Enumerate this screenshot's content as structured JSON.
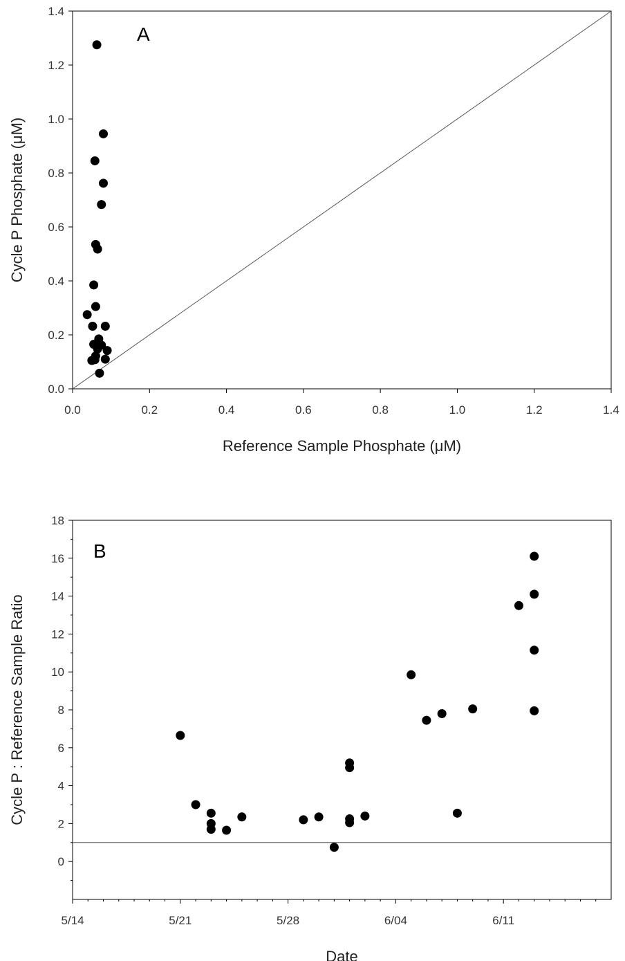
{
  "chart_data": [
    {
      "type": "scatter",
      "panel_label": "A",
      "xlabel": "Reference Sample Phosphate (μM)",
      "ylabel": "Cycle P Phosphate (μM)",
      "xlim": [
        0.0,
        1.4
      ],
      "ylim": [
        0.0,
        1.4
      ],
      "x_ticks": [
        "0.0",
        "0.2",
        "0.4",
        "0.6",
        "0.8",
        "1.0",
        "1.2",
        "1.4"
      ],
      "y_ticks": [
        "0.0",
        "0.2",
        "0.4",
        "0.6",
        "0.8",
        "1.0",
        "1.2",
        "1.4"
      ],
      "grid": false,
      "reference_line": "1:1",
      "error_bars": true,
      "points": [
        {
          "x": 0.063,
          "y": 1.275
        },
        {
          "x": 0.08,
          "y": 0.945
        },
        {
          "x": 0.058,
          "y": 0.845
        },
        {
          "x": 0.08,
          "y": 0.762
        },
        {
          "x": 0.075,
          "y": 0.683
        },
        {
          "x": 0.06,
          "y": 0.535
        },
        {
          "x": 0.065,
          "y": 0.518
        },
        {
          "x": 0.055,
          "y": 0.385
        },
        {
          "x": 0.06,
          "y": 0.305
        },
        {
          "x": 0.038,
          "y": 0.275
        },
        {
          "x": 0.052,
          "y": 0.232
        },
        {
          "x": 0.085,
          "y": 0.232
        },
        {
          "x": 0.068,
          "y": 0.185
        },
        {
          "x": 0.055,
          "y": 0.165
        },
        {
          "x": 0.075,
          "y": 0.162
        },
        {
          "x": 0.065,
          "y": 0.148
        },
        {
          "x": 0.09,
          "y": 0.142
        },
        {
          "x": 0.06,
          "y": 0.122
        },
        {
          "x": 0.05,
          "y": 0.105
        },
        {
          "x": 0.058,
          "y": 0.108
        },
        {
          "x": 0.085,
          "y": 0.11
        },
        {
          "x": 0.07,
          "y": 0.058
        }
      ]
    },
    {
      "type": "scatter",
      "panel_label": "B",
      "xlabel": "Date",
      "ylabel": "Cycle P : Reference Sample Ratio",
      "xlim": [
        "5/14",
        "6/18"
      ],
      "ylim": [
        -2,
        18
      ],
      "x_ticks": [
        "5/14",
        "5/21",
        "5/28",
        "6/04",
        "6/11"
      ],
      "y_ticks": [
        "0",
        "2",
        "4",
        "6",
        "8",
        "10",
        "12",
        "14",
        "16",
        "18"
      ],
      "grid": false,
      "reference_line": "y = 1",
      "points": [
        {
          "x": "5/21",
          "y": 6.65
        },
        {
          "x": "5/22",
          "y": 3.0
        },
        {
          "x": "5/23",
          "y": 2.55
        },
        {
          "x": "5/23",
          "y": 2.0
        },
        {
          "x": "5/23",
          "y": 1.7
        },
        {
          "x": "5/24",
          "y": 1.65
        },
        {
          "x": "5/25",
          "y": 2.35
        },
        {
          "x": "5/29",
          "y": 2.2
        },
        {
          "x": "5/30",
          "y": 2.35
        },
        {
          "x": "5/31",
          "y": 0.75
        },
        {
          "x": "6/01",
          "y": 2.25
        },
        {
          "x": "6/01",
          "y": 2.05
        },
        {
          "x": "6/01",
          "y": 5.2
        },
        {
          "x": "6/01",
          "y": 4.95
        },
        {
          "x": "6/02",
          "y": 2.4
        },
        {
          "x": "6/05",
          "y": 9.85
        },
        {
          "x": "6/06",
          "y": 7.45
        },
        {
          "x": "6/07",
          "y": 7.8
        },
        {
          "x": "6/08",
          "y": 2.55
        },
        {
          "x": "6/09",
          "y": 8.05
        },
        {
          "x": "6/12",
          "y": 13.5
        },
        {
          "x": "6/13",
          "y": 7.95
        },
        {
          "x": "6/13",
          "y": 11.15
        },
        {
          "x": "6/13",
          "y": 14.1
        },
        {
          "x": "6/13",
          "y": 16.1
        }
      ]
    }
  ]
}
